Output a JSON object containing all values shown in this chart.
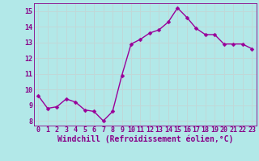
{
  "x": [
    0,
    1,
    2,
    3,
    4,
    5,
    6,
    7,
    8,
    9,
    10,
    11,
    12,
    13,
    14,
    15,
    16,
    17,
    18,
    19,
    20,
    21,
    22,
    23
  ],
  "y": [
    9.6,
    8.8,
    8.9,
    9.4,
    9.2,
    8.7,
    8.6,
    8.0,
    8.6,
    10.9,
    12.9,
    13.2,
    13.6,
    13.8,
    14.3,
    15.2,
    14.6,
    13.9,
    13.5,
    13.5,
    12.9,
    12.9,
    12.9,
    12.6
  ],
  "line_color": "#990099",
  "marker": "D",
  "marker_size": 2.5,
  "background_color": "#b2e8e8",
  "grid_color": "#c0d8d8",
  "xlabel": "Windchill (Refroidissement éolien,°C)",
  "xlabel_fontsize": 7,
  "xlabel_color": "#880088",
  "tick_color": "#880088",
  "tick_fontsize": 6,
  "ylim": [
    7.7,
    15.5
  ],
  "yticks": [
    8,
    9,
    10,
    11,
    12,
    13,
    14,
    15
  ],
  "xlim": [
    -0.5,
    23.5
  ],
  "linewidth": 1.0
}
